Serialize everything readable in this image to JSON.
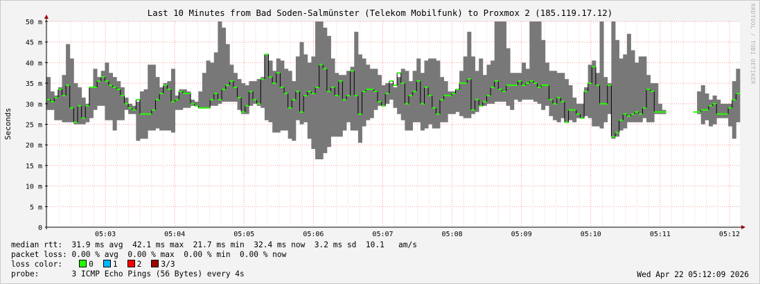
{
  "title": "Last 10 Minutes from Bad Soden-Salmünster (Telekom Mobilfunk) to Proxmox 2 (185.119.17.12)",
  "watermark": "RRDTOOL / TOBI OETIKER",
  "legend": {
    "median_line": "median rtt:  31.9 ms avg  42.1 ms max  21.7 ms min  32.4 ms now  3.2 ms sd  10.1   am/s",
    "loss_line": "packet loss: 0.00 % avg  0.00 % max  0.00 % min  0.00 % now",
    "loss_color_label": "loss color:",
    "loss_colors": [
      {
        "label": "0",
        "color": "#26ff00"
      },
      {
        "label": "1",
        "color": "#00b8ff"
      },
      {
        "label": "2",
        "color": "#ff0000"
      },
      {
        "label": "3/3",
        "color": "#a00000"
      }
    ],
    "probe_line": "probe:       3 ICMP Echo Pings (56 Bytes) every 4s",
    "timestamp": "Wed Apr 22 05:12:09 2026"
  },
  "chart_data": {
    "type": "area",
    "title": "Last 10 Minutes from Bad Soden-Salmünster (Telekom Mobilfunk) to Proxmox 2 (185.119.17.12)",
    "ylabel": "Seconds",
    "xlabel": "",
    "ylim": [
      0,
      50
    ],
    "y_unit": "m",
    "yticks": [
      0,
      5,
      10,
      15,
      20,
      25,
      30,
      35,
      40,
      45,
      50
    ],
    "ytick_labels": [
      "0",
      "5 m",
      "10 m",
      "15 m",
      "20 m",
      "25 m",
      "30 m",
      "35 m",
      "40 m",
      "45 m",
      "50 m"
    ],
    "xtick_labels": [
      "05:03",
      "05:04",
      "05:05",
      "05:06",
      "05:07",
      "05:08",
      "05:09",
      "05:10",
      "05:11",
      "05:12"
    ],
    "x_range": [
      "05:02:09",
      "05:12:09"
    ],
    "step_seconds": 4,
    "grid": true,
    "colors": {
      "smoke": "#787878",
      "median": "#26ff00",
      "grid": "#ff9999"
    },
    "series": [
      {
        "name": "median rtt",
        "role": "median",
        "values": [
          31,
          30.5,
          31.5,
          33.5,
          32,
          34.5,
          29,
          25.5,
          29.5,
          26.5,
          29.5,
          34,
          34,
          35.5,
          36.5,
          35.5,
          34.5,
          34,
          33.5,
          32,
          30,
          29,
          28.5,
          31,
          27.5,
          27.5,
          27.5,
          28.5,
          31,
          32.5,
          34.5,
          33.5,
          30.5,
          31,
          33,
          32.5,
          32.5,
          30,
          29.5,
          29,
          29,
          29,
          31,
          32.5,
          31,
          33.5,
          34.5,
          35.5,
          34,
          31.5,
          28,
          29.5,
          33,
          31,
          30,
          36,
          42,
          36.5,
          35,
          37.5,
          34,
          32.5,
          29,
          31,
          33,
          28,
          32,
          33,
          32.5,
          34,
          39.5,
          38.5,
          33,
          34,
          32,
          35.5,
          31,
          32,
          38,
          32,
          27.5,
          33,
          33.5,
          33.5,
          33,
          30.5,
          29.5,
          32.5,
          35.5,
          34.5,
          37.5,
          35,
          30,
          32,
          33,
          35.5,
          30,
          34,
          32,
          29,
          27.5,
          31,
          32,
          32,
          32.5,
          33.5,
          35,
          35,
          36,
          28.5,
          31,
          29.5,
          30.5,
          32,
          34,
          35.5,
          33.5,
          33,
          34.5,
          34.5,
          34.5,
          35.5,
          34.5,
          35,
          35.5,
          35,
          34,
          34.5,
          34.5,
          31,
          30,
          31.5,
          30.5,
          25.5,
          28.5,
          28.5,
          27.5,
          26.5,
          33,
          35,
          39,
          34.5,
          30,
          30,
          34.5,
          22,
          23,
          26,
          27.5,
          27,
          27.5,
          28,
          27.5,
          29,
          33.5,
          33,
          28,
          28,
          28,
          null,
          null,
          null,
          null,
          null,
          null,
          null,
          28,
          28,
          28.5,
          28.5,
          29.5,
          30,
          27.5,
          27.5,
          27.5,
          29,
          31,
          32.5
        ]
      },
      {
        "name": "min rtt",
        "role": "smoke_low",
        "values": [
          28.5,
          28.5,
          26,
          26,
          25.5,
          25.5,
          25.5,
          25,
          25,
          25,
          25.5,
          26.5,
          28.5,
          29.5,
          29.5,
          26,
          26,
          23.5,
          26,
          26,
          28.5,
          27.5,
          27.5,
          21,
          21.5,
          21.5,
          23.5,
          23.5,
          24,
          23.5,
          23.5,
          23.5,
          23,
          28.5,
          28.5,
          29,
          29,
          29.5,
          29.5,
          29,
          29,
          29,
          29.5,
          29.5,
          30,
          30.5,
          30.5,
          30.5,
          30.5,
          28.5,
          27.5,
          27.5,
          29.5,
          30,
          29.5,
          29,
          26,
          25.5,
          23,
          23,
          23.5,
          23.5,
          21.5,
          21,
          26,
          25,
          25.5,
          21.5,
          19,
          16.5,
          16.5,
          18,
          19.5,
          22,
          22,
          22,
          23.5,
          25.5,
          23.5,
          23.5,
          20.5,
          24.5,
          26,
          26.5,
          28.5,
          29.5,
          29.5,
          30,
          31,
          29,
          27.5,
          26,
          23.5,
          23.5,
          25.5,
          25.5,
          23.5,
          24,
          25,
          24,
          24,
          25.5,
          25.5,
          27.5,
          27.5,
          28,
          27,
          26.5,
          26.5,
          27.5,
          28,
          29.5,
          29.5,
          30,
          30,
          30.5,
          30.5,
          30.5,
          29.5,
          28.5,
          31,
          30.5,
          31,
          31,
          31,
          30.5,
          30,
          28.5,
          29.5,
          27,
          26,
          25.5,
          26.5,
          25.5,
          26,
          25.5,
          26.5,
          26.5,
          27,
          26.5,
          24.5,
          24.5,
          24,
          25.5,
          27.5,
          21.5,
          22,
          23.5,
          24,
          25.5,
          25.5,
          25.5,
          25.5,
          26.5,
          25.5,
          25.5,
          27.5,
          27.5,
          27.5,
          null,
          null,
          null,
          null,
          null,
          null,
          null,
          28,
          27.5,
          25,
          26,
          24.5,
          25,
          26.5,
          26.5,
          26.5,
          24.5,
          21.5,
          25.5
        ]
      },
      {
        "name": "max rtt",
        "role": "smoke_high",
        "values": [
          36.5,
          33,
          32,
          34,
          37,
          44.5,
          41,
          35,
          34,
          31.5,
          30,
          34,
          38.5,
          36.5,
          38,
          40,
          37.5,
          36.5,
          35.5,
          34,
          31.5,
          30,
          29.5,
          30.5,
          33,
          33.5,
          39.5,
          39.5,
          36.5,
          34,
          35,
          35.5,
          38.5,
          32,
          33.5,
          33.5,
          33,
          31,
          30.5,
          33,
          37.5,
          40.5,
          40,
          42.5,
          50,
          48.5,
          44.5,
          39.5,
          37.5,
          36,
          35,
          34.5,
          35.5,
          35.5,
          36,
          36.5,
          42,
          40.5,
          38,
          41,
          40.5,
          38.5,
          38,
          35.5,
          41.5,
          45,
          42,
          40,
          41.5,
          50.5,
          50.5,
          48.5,
          46.5,
          41,
          37.5,
          37,
          37,
          38,
          39,
          47.5,
          42,
          41,
          39.5,
          38.5,
          38.5,
          37,
          34.5,
          35,
          35,
          34,
          36.5,
          38.5,
          38,
          35.5,
          38,
          41,
          37.5,
          40.5,
          41,
          41,
          40.5,
          36.5,
          35.5,
          33,
          33,
          33.5,
          38,
          41.5,
          47.5,
          41.5,
          38,
          41,
          37,
          39.5,
          40.5,
          50.5,
          50.5,
          50.5,
          43.5,
          37.5,
          37.5,
          37.5,
          40,
          38.5,
          50.5,
          50.5,
          50.5,
          45.5,
          40,
          38,
          38,
          37.5,
          37.5,
          36,
          34.5,
          31.5,
          30,
          30,
          34,
          39.5,
          40.5,
          37.5,
          50.5,
          36.5,
          35,
          50.5,
          45.5,
          41,
          42,
          47,
          43,
          40,
          41.5,
          41.5,
          37,
          35,
          35,
          30,
          28.5,
          28.5,
          null,
          null,
          null,
          null,
          null,
          null,
          null,
          33,
          34.5,
          32.5,
          31,
          32,
          31,
          30,
          30,
          30,
          35.5,
          38.5,
          38
        ]
      }
    ]
  }
}
